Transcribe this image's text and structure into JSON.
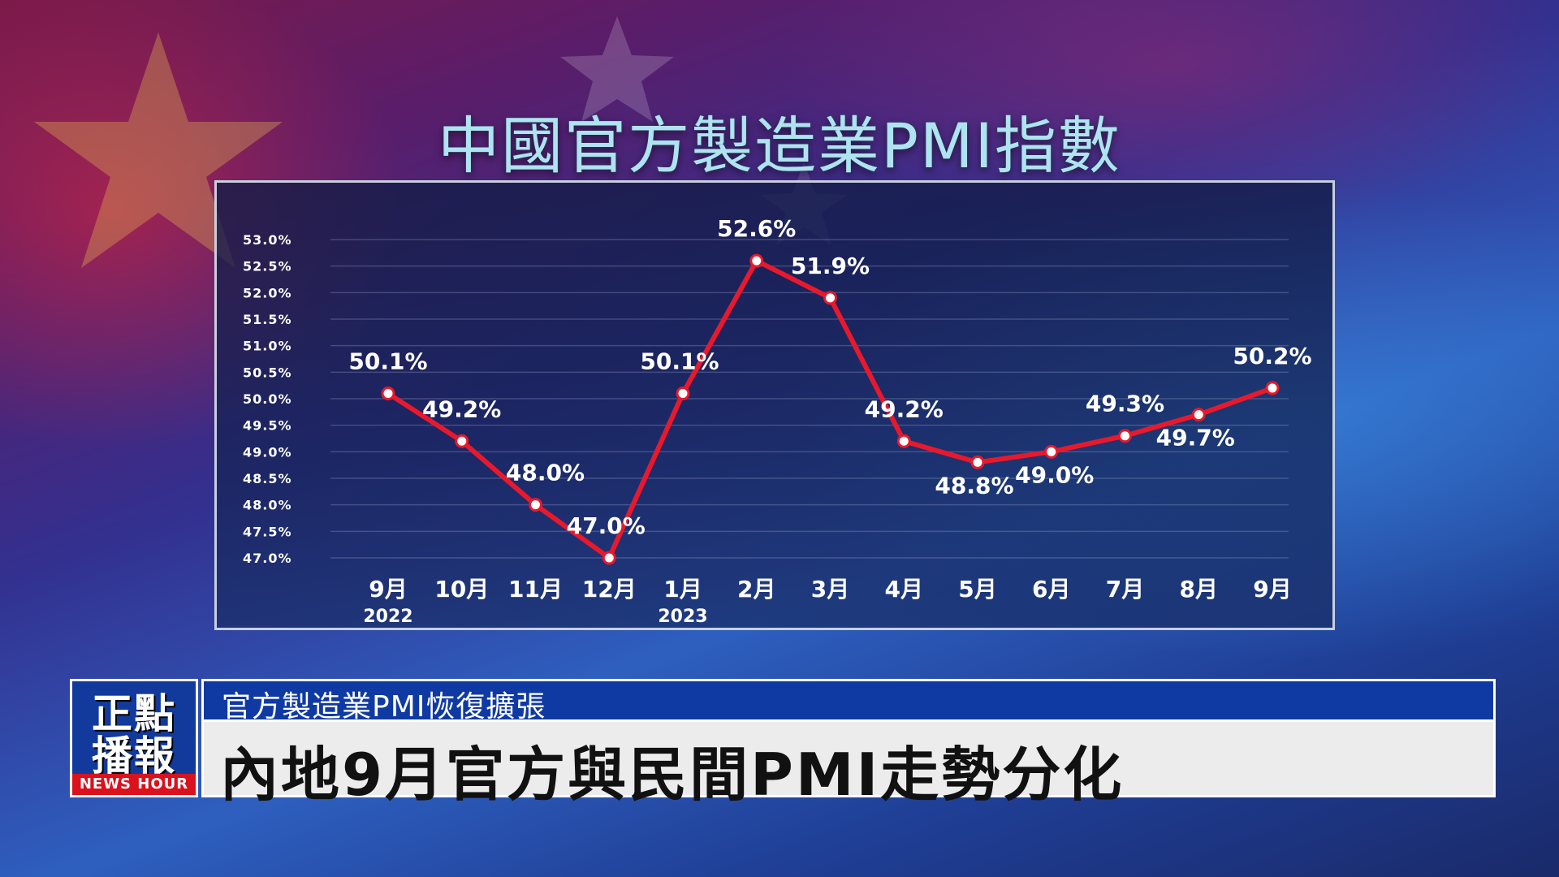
{
  "title": "中國官方製造業PMI指數",
  "chart_data": {
    "type": "line",
    "title": "中國官方製造業PMI指數",
    "categories": [
      "9月",
      "10月",
      "11月",
      "12月",
      "1月",
      "2月",
      "3月",
      "4月",
      "5月",
      "6月",
      "7月",
      "8月",
      "9月"
    ],
    "year_labels": [
      {
        "index": 0,
        "label": "2022"
      },
      {
        "index": 4,
        "label": "2023"
      }
    ],
    "series": [
      {
        "values": [
          50.1,
          49.2,
          48.0,
          47.0,
          50.1,
          52.6,
          51.9,
          49.2,
          48.8,
          49.0,
          49.3,
          49.7,
          50.2
        ],
        "labels": [
          "50.1%",
          "49.2%",
          "48.0%",
          "47.0%",
          "50.1%",
          "52.6%",
          "51.9%",
          "49.2%",
          "48.8%",
          "49.0%",
          "49.3%",
          "49.7%",
          "50.2%"
        ]
      }
    ],
    "yticks": [
      "53.0%",
      "52.5%",
      "52.0%",
      "51.5%",
      "51.0%",
      "50.5%",
      "50.0%",
      "49.5%",
      "49.0%",
      "48.5%",
      "48.0%",
      "47.5%",
      "47.0%"
    ],
    "ylim": [
      47.0,
      53.0
    ],
    "xlabel": "",
    "ylabel": "",
    "grid": true,
    "line_color": "#e8192c",
    "marker_color": "#ffffff"
  },
  "lower_third": {
    "logo_line1": "正點",
    "logo_line2": "播報",
    "logo_sub": "NEWS HOUR",
    "sub_headline": "官方製造業PMI恢復擴張",
    "main_headline": "內地9月官方與民間PMI走勢分化"
  }
}
